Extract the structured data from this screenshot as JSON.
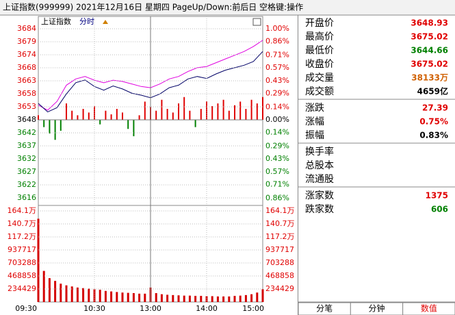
{
  "header": {
    "title": "上证指数(999999)  2021年12月16日  星期四  PageUp/Down:前后日  空格键:操作"
  },
  "chart_data": [
    {
      "type": "line",
      "title": "上证指数",
      "subtitle": "分时",
      "grid": true,
      "xlim": [
        0,
        240
      ],
      "ylim": [
        3613.9,
        3685.75
      ],
      "yticks": [
        {
          "value": 3684.11,
          "label": "3684"
        },
        {
          "value": 3678.89,
          "label": "3679"
        },
        {
          "value": 3673.68,
          "label": "3674"
        },
        {
          "value": 3668.47,
          "label": "3668"
        },
        {
          "value": 3663.26,
          "label": "3663"
        },
        {
          "value": 3658.05,
          "label": "3658"
        },
        {
          "value": 3652.84,
          "label": "3653"
        },
        {
          "value": 3647.63,
          "label": "3648"
        },
        {
          "value": 3642.42,
          "label": "3642"
        },
        {
          "value": 3637.21,
          "label": "3637"
        },
        {
          "value": 3632.0,
          "label": "3632"
        },
        {
          "value": 3626.79,
          "label": "3627"
        },
        {
          "value": 3621.58,
          "label": "3622"
        },
        {
          "value": 3616.37,
          "label": "3616"
        }
      ],
      "y2lim": [
        -0.925,
        1.045
      ],
      "y2ticks": [
        {
          "value": 1.0,
          "label": "1.00%"
        },
        {
          "value": 0.86,
          "label": "0.86%"
        },
        {
          "value": 0.71,
          "label": "0.71%"
        },
        {
          "value": 0.57,
          "label": "0.57%"
        },
        {
          "value": 0.43,
          "label": "0.43%"
        },
        {
          "value": 0.29,
          "label": "0.29%"
        },
        {
          "value": 0.14,
          "label": "0.14%"
        },
        {
          "value": 0,
          "label": "0.00%"
        },
        {
          "value": -0.14,
          "label": "0.14%"
        },
        {
          "value": -0.29,
          "label": "0.29%"
        },
        {
          "value": -0.43,
          "label": "0.43%"
        },
        {
          "value": -0.57,
          "label": "0.57%"
        },
        {
          "value": -0.71,
          "label": "0.71%"
        },
        {
          "value": -0.86,
          "label": "0.86%"
        }
      ],
      "series": [
        {
          "type": "bar",
          "axis": "y2",
          "color": "#e00000",
          "negative_color": "#008000",
          "x": [
            0,
            6,
            12,
            18,
            24,
            30,
            36,
            42,
            48,
            54,
            60,
            66,
            72,
            78,
            84,
            90,
            96,
            102,
            108,
            114,
            120,
            126,
            132,
            138,
            144,
            150,
            156,
            162,
            168,
            174,
            180,
            186,
            192,
            198,
            204,
            210,
            216,
            222,
            228,
            234,
            240
          ],
          "values": [
            0.05,
            -0.08,
            -0.15,
            -0.22,
            -0.12,
            0.18,
            0.1,
            0.05,
            0.12,
            0.08,
            0.15,
            -0.05,
            0.1,
            0.06,
            0.12,
            0.08,
            -0.1,
            -0.18,
            0.05,
            0.2,
            0.14,
            0.1,
            0.22,
            0.12,
            0.08,
            0.18,
            0.25,
            0.1,
            -0.08,
            0.12,
            0.2,
            0.15,
            0.18,
            0.22,
            0.1,
            0.16,
            0.2,
            0.12,
            0.22,
            0.18,
            0.25
          ]
        },
        {
          "type": "line",
          "color": "#e000e0",
          "x": [
            0,
            10,
            20,
            30,
            40,
            50,
            60,
            70,
            80,
            90,
            100,
            110,
            120,
            130,
            140,
            150,
            160,
            170,
            180,
            190,
            200,
            210,
            220,
            230,
            240
          ],
          "values": [
            3653.5,
            3651.5,
            3655.0,
            3661.5,
            3664.0,
            3665.0,
            3663.5,
            3662.5,
            3663.5,
            3663.0,
            3662.0,
            3661.0,
            3660.5,
            3662.0,
            3664.0,
            3665.0,
            3667.0,
            3668.5,
            3669.0,
            3670.5,
            3672.0,
            3673.5,
            3675.0,
            3677.0,
            3679.5
          ]
        },
        {
          "type": "line",
          "color": "#000066",
          "x": [
            0,
            10,
            20,
            30,
            40,
            50,
            60,
            70,
            80,
            90,
            100,
            110,
            120,
            130,
            140,
            150,
            160,
            170,
            180,
            190,
            200,
            210,
            220,
            230,
            240
          ],
          "values": [
            3654.2,
            3650.8,
            3652.5,
            3658.0,
            3662.5,
            3663.6,
            3661.0,
            3659.5,
            3661.2,
            3660.0,
            3658.3,
            3657.5,
            3656.5,
            3658.0,
            3660.5,
            3661.5,
            3664.0,
            3665.0,
            3664.2,
            3666.0,
            3667.5,
            3668.5,
            3669.5,
            3671.0,
            3675.0
          ]
        }
      ]
    },
    {
      "type": "bar",
      "color": "#d40000",
      "grid": true,
      "xlim": [
        0,
        240
      ],
      "xticks": [
        {
          "value": 0,
          "label": "09:30"
        },
        {
          "value": 60,
          "label": "10:30"
        },
        {
          "value": 120,
          "label": "13:00"
        },
        {
          "value": 180,
          "label": "14:00"
        },
        {
          "value": 240,
          "label": "15:00"
        }
      ],
      "ylim": [
        0,
        1702700
      ],
      "yticks": [
        {
          "value": 1641004,
          "label": "164.1万"
        },
        {
          "value": 1406575,
          "label": "140.7万"
        },
        {
          "value": 1172146,
          "label": "117.2万"
        },
        937717,
        703288,
        468858,
        234429
      ],
      "x": [
        0,
        6,
        12,
        18,
        24,
        30,
        36,
        42,
        48,
        54,
        60,
        66,
        72,
        78,
        84,
        90,
        96,
        102,
        108,
        114,
        120,
        126,
        132,
        138,
        144,
        150,
        156,
        162,
        168,
        174,
        180,
        186,
        192,
        198,
        204,
        210,
        216,
        222,
        228,
        234,
        240
      ],
      "values": [
        1500000,
        560000,
        430000,
        380000,
        330000,
        300000,
        280000,
        260000,
        250000,
        240000,
        230000,
        220000,
        200000,
        190000,
        180000,
        170000,
        165000,
        160000,
        150000,
        150000,
        260000,
        160000,
        140000,
        130000,
        125000,
        120000,
        115000,
        115000,
        110000,
        110000,
        105000,
        105000,
        100000,
        100000,
        100000,
        110000,
        115000,
        125000,
        140000,
        170000,
        230000
      ]
    }
  ],
  "panel": {
    "quotes": [
      {
        "label": "开盘价",
        "value": "3648.93",
        "color": "#e00000"
      },
      {
        "label": "最高价",
        "value": "3675.02",
        "color": "#e00000"
      },
      {
        "label": "最低价",
        "value": "3644.66",
        "color": "#008000"
      },
      {
        "label": "收盘价",
        "value": "3675.02",
        "color": "#e00000"
      },
      {
        "label": "成交量",
        "value": "38133万",
        "color": "#d06000"
      },
      {
        "label": "成交额",
        "value": "4659亿",
        "color": "#000000"
      }
    ],
    "change": [
      {
        "label": "涨跌",
        "value": "27.39",
        "color": "#e00000"
      },
      {
        "label": "涨幅",
        "value": "0.75%",
        "color": "#e00000"
      },
      {
        "label": "振幅",
        "value": "0.83%",
        "color": "#000000"
      }
    ],
    "shares": [
      "换手率",
      "总股本",
      "流通股"
    ],
    "breadth": [
      {
        "label": "涨家数",
        "value": "1375",
        "color": "#e00000"
      },
      {
        "label": "跌家数",
        "value": "606",
        "color": "#008000"
      }
    ]
  },
  "tabs": [
    "分笔",
    "分钟",
    "数值"
  ],
  "active_tab": 2
}
